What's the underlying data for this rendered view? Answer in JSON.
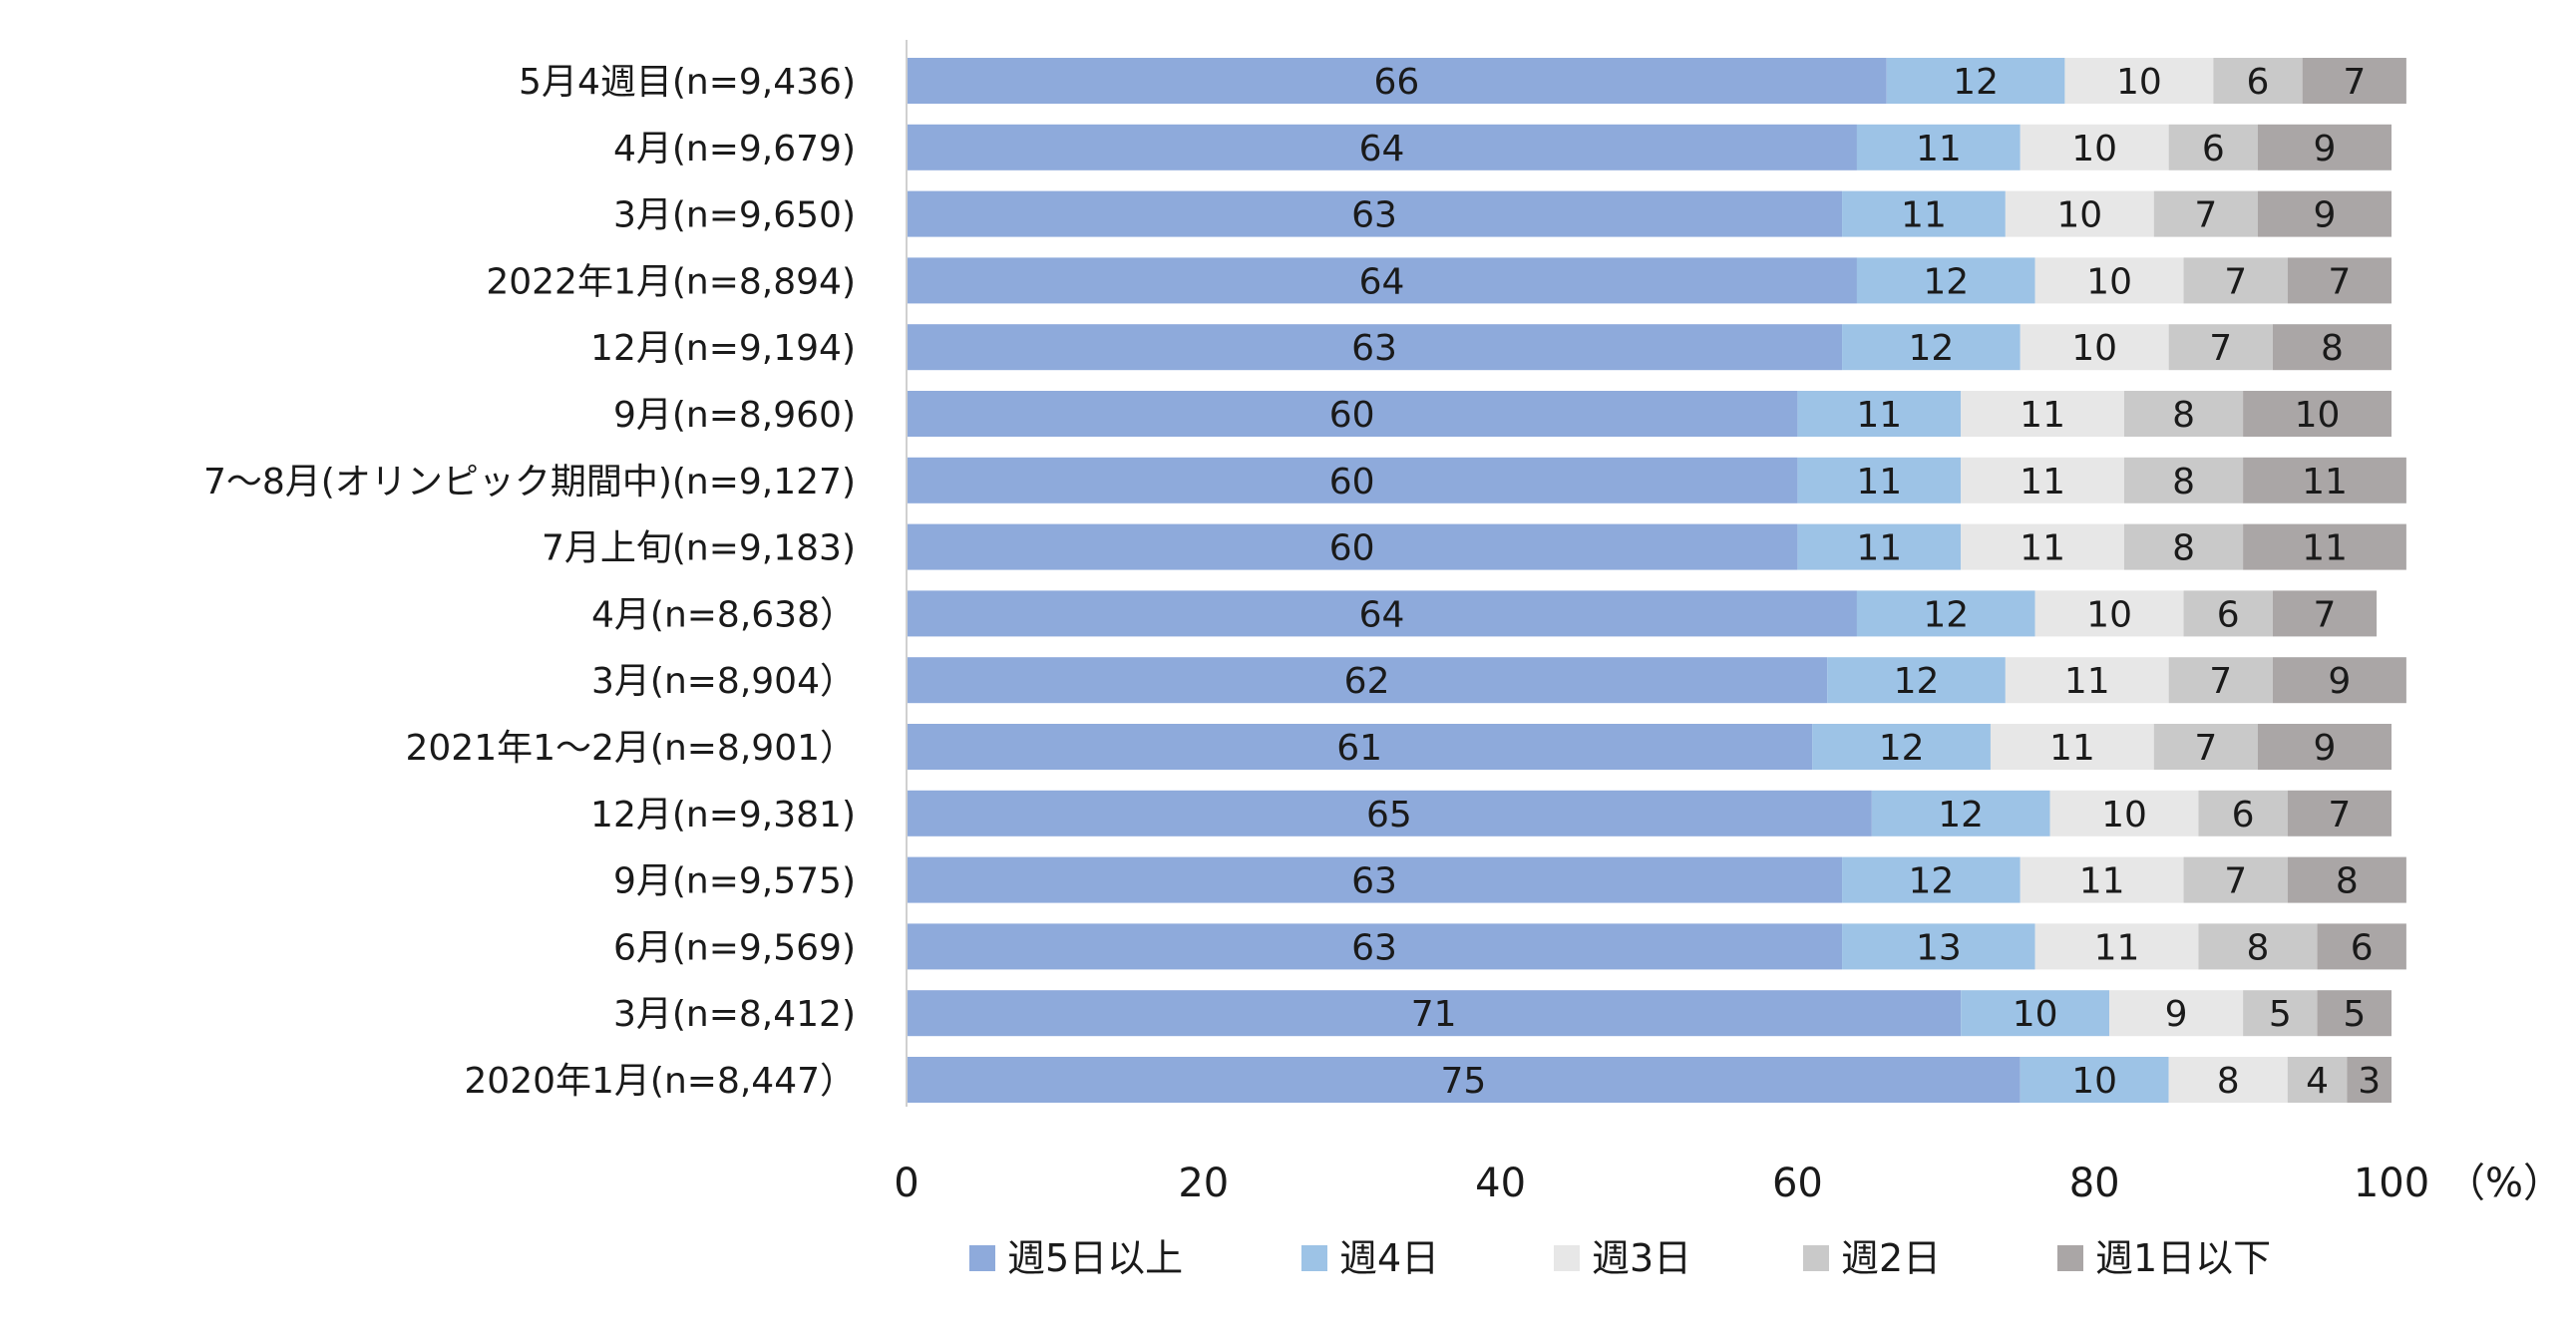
{
  "chart_data": {
    "type": "bar",
    "orientation": "horizontal",
    "stacked": true,
    "categories": [
      "5月4週目(n=9,436)",
      "4月(n=9,679)",
      "3月(n=9,650)",
      "2022年1月(n=8,894)",
      "12月(n=9,194)",
      "9月(n=8,960)",
      "7～8月(オリンピック期間中)(n=9,127)",
      "7月上旬(n=9,183)",
      "4月(n=8,638）",
      "3月(n=8,904）",
      "2021年1～2月(n=8,901）",
      "12月(n=9,381)",
      "9月(n=9,575)",
      "6月(n=9,569)",
      "3月(n=8,412)",
      "2020年1月(n=8,447）"
    ],
    "series": [
      {
        "name": "週5日以上",
        "color": "#8eaadb",
        "values": [
          66,
          64,
          63,
          64,
          63,
          60,
          60,
          60,
          64,
          62,
          61,
          65,
          63,
          63,
          71,
          75
        ]
      },
      {
        "name": "週4日",
        "color": "#9dc3e6",
        "values": [
          12,
          11,
          11,
          12,
          12,
          11,
          11,
          11,
          12,
          12,
          12,
          12,
          12,
          13,
          10,
          10
        ]
      },
      {
        "name": "週3日",
        "color": "#e7e7e7",
        "values": [
          10,
          10,
          10,
          10,
          10,
          11,
          11,
          11,
          10,
          11,
          11,
          10,
          11,
          11,
          9,
          8
        ]
      },
      {
        "name": "週2日",
        "color": "#c9c9c9",
        "values": [
          6,
          6,
          7,
          7,
          7,
          8,
          8,
          8,
          6,
          7,
          7,
          6,
          7,
          8,
          5,
          4
        ]
      },
      {
        "name": "週1日以下",
        "color": "#aaa6a6",
        "values": [
          7,
          9,
          9,
          7,
          8,
          10,
          11,
          11,
          7,
          9,
          9,
          7,
          8,
          6,
          5,
          3
        ]
      }
    ],
    "xlim": [
      0,
      100
    ],
    "xticks": [
      0,
      20,
      40,
      60,
      80,
      100
    ],
    "unit_label": "（%）",
    "legend_position": "bottom",
    "grid": false
  }
}
